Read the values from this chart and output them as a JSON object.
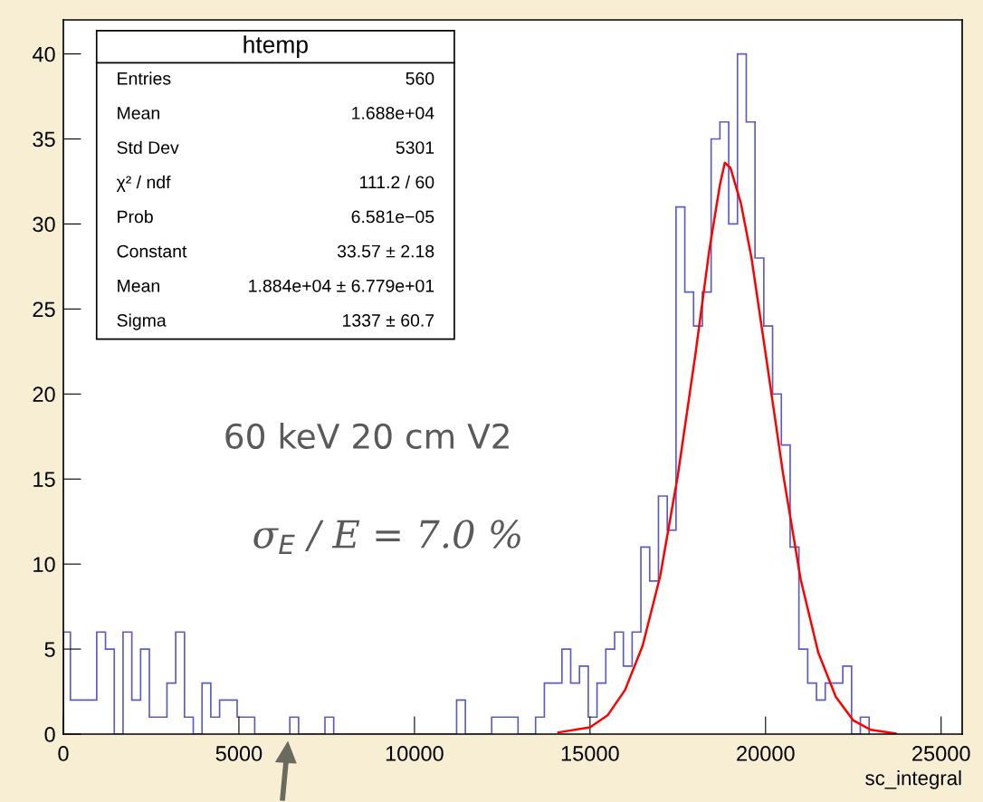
{
  "chart_data": {
    "type": "histogram",
    "xlabel": "sc_integral",
    "bins": [
      0,
      200,
      450,
      700,
      950,
      1200,
      1450,
      1700,
      1950,
      2200,
      2450,
      2700,
      2950,
      3200,
      3450,
      3700,
      3950,
      4200,
      4450,
      4700,
      4950,
      5200,
      5450,
      5700,
      5950,
      6200,
      6450,
      6700,
      6950,
      7200,
      7450,
      7700,
      7950,
      8200,
      8450,
      8700,
      8950,
      9200,
      9450,
      9700,
      9950,
      10200,
      10450,
      10700,
      10950,
      11200,
      11450,
      11700,
      11950,
      12200,
      12450,
      12700,
      12950,
      13200,
      13450,
      13700,
      13950,
      14200,
      14450,
      14700,
      14950,
      15200,
      15450,
      15700,
      15950,
      16200,
      16450,
      16700,
      16950,
      17200,
      17450,
      17700,
      17950,
      18200,
      18450,
      18700,
      18950,
      19200,
      19450,
      19700,
      19950,
      20200,
      20450,
      20700,
      20950,
      21200,
      21450,
      21700,
      21950,
      22200,
      22450,
      22700,
      22950
    ],
    "series": [
      {
        "type": "histogram",
        "color": "#5c5cc0",
        "values": [
          6,
          2,
          2,
          2,
          6,
          5,
          0,
          6,
          2,
          5,
          1,
          1,
          3,
          6,
          1,
          0,
          3,
          1,
          2,
          2,
          1,
          1,
          0,
          0,
          0,
          0,
          1,
          0,
          0,
          0,
          1,
          0,
          0,
          0,
          0,
          0,
          0,
          0,
          0,
          0,
          0,
          0,
          0,
          0,
          0,
          2,
          0,
          0,
          0,
          1,
          1,
          1,
          0,
          0,
          1,
          3,
          3,
          5,
          3,
          4,
          1,
          3,
          5,
          6,
          4,
          6,
          11,
          9,
          14,
          12,
          31,
          26,
          24,
          26,
          35,
          36,
          30,
          40,
          36,
          28,
          24,
          20,
          17,
          11,
          5,
          3,
          2,
          3,
          3,
          4,
          0,
          1
        ]
      },
      {
        "type": "line",
        "color": "#ff0000",
        "x": [
          14100,
          15000,
          15500,
          16000,
          16500,
          17000,
          17500,
          18000,
          18400,
          18700,
          18840,
          19000,
          19300,
          19600,
          20000,
          20500,
          21000,
          21500,
          22000,
          22500,
          23000,
          23700
        ],
        "values": [
          0.1,
          0.4,
          1.1,
          2.6,
          5.2,
          9.3,
          15.2,
          22.3,
          28.5,
          32.3,
          33.6,
          33.3,
          31.2,
          28.0,
          22.4,
          15.3,
          9.1,
          4.8,
          2.2,
          0.8,
          0.25,
          0.04
        ]
      }
    ],
    "xlim": [
      0,
      25600
    ],
    "xticks": [
      0,
      5000,
      10000,
      15000,
      20000,
      25000
    ],
    "ylim": [
      0,
      42
    ],
    "yticks": [
      0,
      5,
      10,
      15,
      20,
      25,
      30,
      35,
      40
    ],
    "grid": false,
    "legend": false,
    "annotations": [
      "htemp",
      "Entries",
      "560",
      "Mean",
      "1.688e+04",
      "Std Dev",
      "5301",
      "χ² / ndf",
      "111.2 / 60",
      "Prob",
      "6.581e−05",
      "Constant",
      "33.57 ± 2.18",
      "Mean",
      "1.884e+04 ± 6.779e+01",
      "Sigma",
      "1337 ± 60.7",
      "60 keV 20 cm V2",
      "σ$_{E}$ / E = 7.0 %"
    ]
  }
}
